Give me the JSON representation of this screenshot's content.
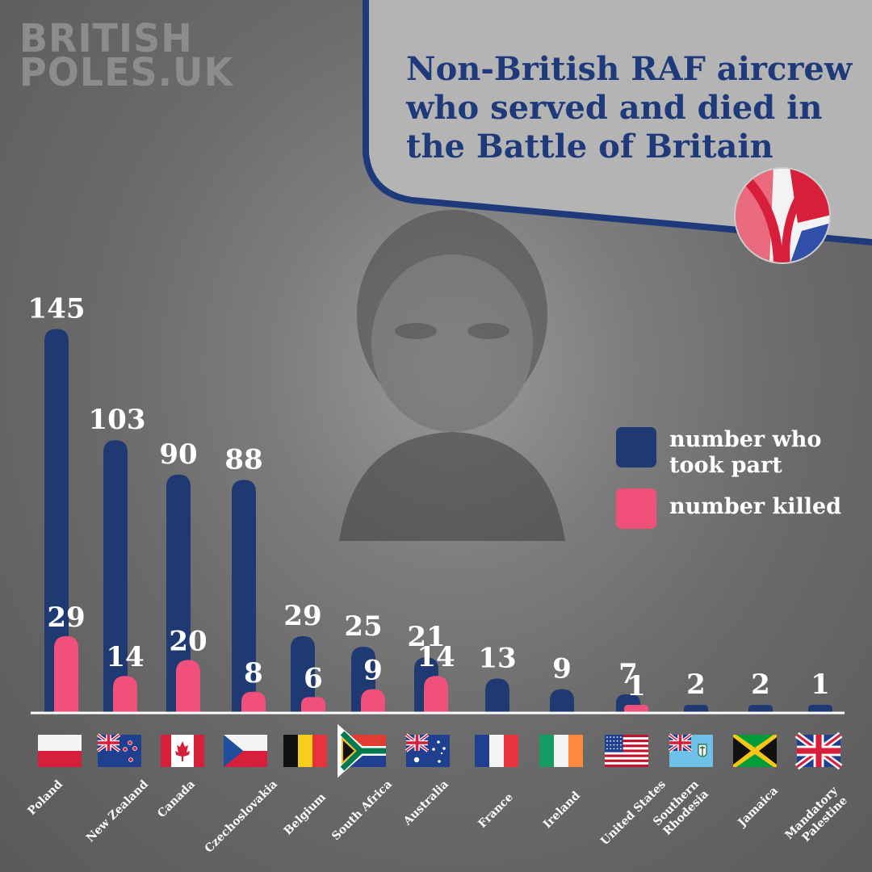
{
  "brand": {
    "line1": "BRITISH",
    "line2": "POLES.UK"
  },
  "title": {
    "line1": "Non-British RAF aircrew",
    "line2": "who served and died in",
    "line3": "the Battle of Britain"
  },
  "legend": {
    "took_part": "number who took part",
    "killed": "number killed"
  },
  "colors": {
    "took_part": "#1f3a73",
    "killed": "#f0507a",
    "title": "#1f3a7a",
    "panel": "#b8b8b8"
  },
  "chart_data": {
    "type": "bar",
    "categories": [
      "Poland",
      "New Zealand",
      "Canada",
      "Czechoslovakia",
      "Belgium",
      "South Africa",
      "Australia",
      "France",
      "Ireland",
      "United States",
      "Southern Rhodesia",
      "Jamaica",
      "Mandatory Palestine"
    ],
    "series": [
      {
        "name": "number who took part",
        "values": [
          145,
          103,
          90,
          88,
          29,
          25,
          21,
          13,
          9,
          7,
          2,
          2,
          1
        ]
      },
      {
        "name": "number killed",
        "values": [
          29,
          14,
          20,
          8,
          6,
          9,
          14,
          null,
          null,
          1,
          null,
          null,
          null
        ]
      }
    ],
    "flags": [
      "poland-flag",
      "new-zealand-flag",
      "canada-flag",
      "czechoslovakia-flag",
      "belgium-flag",
      "south-africa-flag",
      "australia-flag",
      "france-flag",
      "ireland-flag",
      "united-states-flag",
      "southern-rhodesia-flag",
      "jamaica-flag",
      "mandatory-palestine-flag"
    ],
    "legend_position": "right"
  }
}
